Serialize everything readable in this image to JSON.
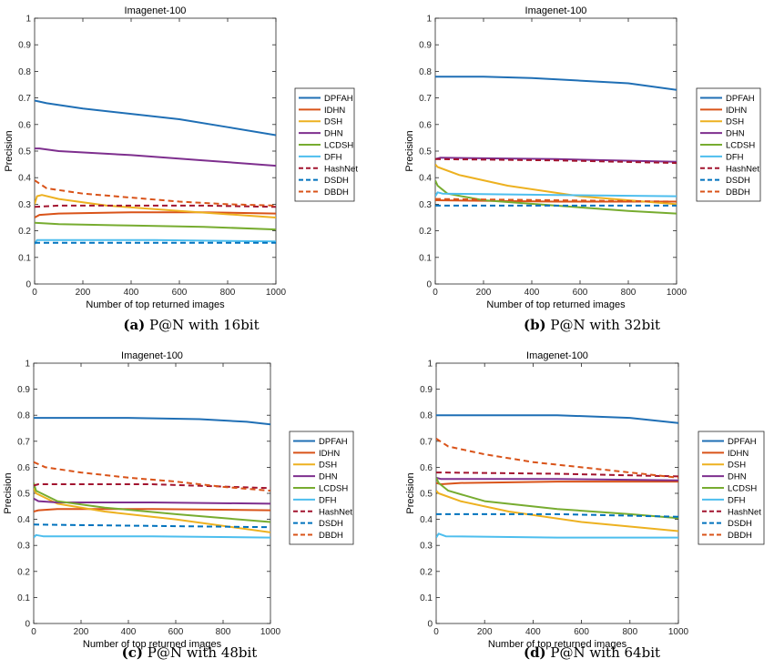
{
  "series_styles": [
    {
      "name": "DPFAH",
      "color": "#1f6fb5",
      "dash": "solid"
    },
    {
      "name": "IDHN",
      "color": "#d95319",
      "dash": "solid"
    },
    {
      "name": "DSH",
      "color": "#edb120",
      "dash": "solid"
    },
    {
      "name": "DHN",
      "color": "#7e2f8e",
      "dash": "solid"
    },
    {
      "name": "LCDSH",
      "color": "#77ac30",
      "dash": "solid"
    },
    {
      "name": "DFH",
      "color": "#4dbeee",
      "dash": "solid"
    },
    {
      "name": "HashNet",
      "color": "#a2142f",
      "dash": "dashed"
    },
    {
      "name": "DSDH",
      "color": "#0072bd",
      "dash": "dashed"
    },
    {
      "name": "DBDH",
      "color": "#d95319",
      "dash": "dashed"
    }
  ],
  "chart_data": [
    {
      "type": "line",
      "title": "Imagenet-100",
      "xlabel": "Number of top returned images",
      "ylabel": "Precision",
      "caption_label": "(a)",
      "caption_text": " P@N with 16bit",
      "xlim": [
        0,
        1000
      ],
      "ylim": [
        0,
        1
      ],
      "xticks": [
        0,
        200,
        400,
        600,
        800,
        1000
      ],
      "yticks": [
        0,
        0.1,
        0.2,
        0.3,
        0.4,
        0.5,
        0.6,
        0.7,
        0.8,
        0.9,
        1
      ],
      "grid": false,
      "legend_position": "outside-right",
      "series": [
        {
          "name": "DPFAH",
          "x": [
            0,
            50,
            200,
            400,
            600,
            800,
            1000
          ],
          "y": [
            0.69,
            0.68,
            0.66,
            0.64,
            0.62,
            0.59,
            0.56
          ]
        },
        {
          "name": "IDHN",
          "x": [
            0,
            20,
            100,
            400,
            700,
            1000
          ],
          "y": [
            0.25,
            0.26,
            0.265,
            0.27,
            0.27,
            0.265
          ]
        },
        {
          "name": "DSH",
          "x": [
            0,
            10,
            30,
            100,
            300,
            600,
            1000
          ],
          "y": [
            0.3,
            0.33,
            0.335,
            0.32,
            0.295,
            0.275,
            0.25
          ]
        },
        {
          "name": "DHN",
          "x": [
            0,
            20,
            100,
            400,
            700,
            1000
          ],
          "y": [
            0.51,
            0.51,
            0.5,
            0.485,
            0.465,
            0.445
          ]
        },
        {
          "name": "LCDSH",
          "x": [
            0,
            100,
            400,
            700,
            1000
          ],
          "y": [
            0.23,
            0.225,
            0.22,
            0.215,
            0.205
          ]
        },
        {
          "name": "DFH",
          "x": [
            0,
            10,
            500,
            1000
          ],
          "y": [
            0.15,
            0.165,
            0.165,
            0.16
          ]
        },
        {
          "name": "HashNet",
          "x": [
            0,
            100,
            400,
            700,
            1000
          ],
          "y": [
            0.29,
            0.295,
            0.295,
            0.295,
            0.29
          ]
        },
        {
          "name": "DSDH",
          "x": [
            0,
            500,
            1000
          ],
          "y": [
            0.155,
            0.155,
            0.155
          ]
        },
        {
          "name": "DBDH",
          "x": [
            0,
            50,
            200,
            400,
            600,
            800,
            1000
          ],
          "y": [
            0.39,
            0.36,
            0.34,
            0.325,
            0.31,
            0.3,
            0.295
          ]
        }
      ]
    },
    {
      "type": "line",
      "title": "Imagenet-100",
      "xlabel": "Number of top returned images",
      "ylabel": "Precision",
      "caption_label": "(b)",
      "caption_text": " P@N with 32bit",
      "xlim": [
        0,
        1000
      ],
      "ylim": [
        0,
        1
      ],
      "xticks": [
        0,
        200,
        400,
        600,
        800,
        1000
      ],
      "yticks": [
        0,
        0.1,
        0.2,
        0.3,
        0.4,
        0.5,
        0.6,
        0.7,
        0.8,
        0.9,
        1
      ],
      "grid": false,
      "legend_position": "outside-right",
      "series": [
        {
          "name": "DPFAH",
          "x": [
            0,
            200,
            400,
            600,
            800,
            1000
          ],
          "y": [
            0.78,
            0.78,
            0.775,
            0.765,
            0.755,
            0.73
          ]
        },
        {
          "name": "IDHN",
          "x": [
            0,
            500,
            1000
          ],
          "y": [
            0.315,
            0.31,
            0.31
          ]
        },
        {
          "name": "DSH",
          "x": [
            0,
            10,
            100,
            300,
            600,
            1000
          ],
          "y": [
            0.45,
            0.44,
            0.41,
            0.37,
            0.33,
            0.3
          ]
        },
        {
          "name": "DHN",
          "x": [
            0,
            20,
            500,
            1000
          ],
          "y": [
            0.47,
            0.475,
            0.47,
            0.46
          ]
        },
        {
          "name": "LCDSH",
          "x": [
            0,
            10,
            50,
            200,
            500,
            800,
            1000
          ],
          "y": [
            0.39,
            0.37,
            0.34,
            0.315,
            0.295,
            0.275,
            0.265
          ]
        },
        {
          "name": "DFH",
          "x": [
            0,
            10,
            30,
            500,
            1000
          ],
          "y": [
            0.33,
            0.345,
            0.34,
            0.335,
            0.33
          ]
        },
        {
          "name": "HashNet",
          "x": [
            0,
            500,
            1000
          ],
          "y": [
            0.47,
            0.465,
            0.455
          ]
        },
        {
          "name": "DSDH",
          "x": [
            0,
            500,
            1000
          ],
          "y": [
            0.295,
            0.295,
            0.295
          ]
        },
        {
          "name": "DBDH",
          "x": [
            0,
            500,
            1000
          ],
          "y": [
            0.32,
            0.315,
            0.31
          ]
        }
      ]
    },
    {
      "type": "line",
      "title": "Imagenet-100",
      "xlabel": "Number of top returned images",
      "ylabel": "Precision",
      "caption_label": "(c)",
      "caption_text": " P@N with 48bit",
      "xlim": [
        0,
        1000
      ],
      "ylim": [
        0,
        1
      ],
      "xticks": [
        0,
        200,
        400,
        600,
        800,
        1000
      ],
      "yticks": [
        0,
        0.1,
        0.2,
        0.3,
        0.4,
        0.5,
        0.6,
        0.7,
        0.8,
        0.9,
        1
      ],
      "grid": false,
      "legend_position": "outside-right",
      "series": [
        {
          "name": "DPFAH",
          "x": [
            0,
            100,
            400,
            700,
            900,
            1000
          ],
          "y": [
            0.79,
            0.79,
            0.79,
            0.785,
            0.775,
            0.765
          ]
        },
        {
          "name": "IDHN",
          "x": [
            0,
            20,
            100,
            500,
            1000
          ],
          "y": [
            0.43,
            0.435,
            0.44,
            0.44,
            0.435
          ]
        },
        {
          "name": "DSH",
          "x": [
            0,
            10,
            100,
            300,
            600,
            1000
          ],
          "y": [
            0.52,
            0.5,
            0.46,
            0.43,
            0.4,
            0.35
          ]
        },
        {
          "name": "DHN",
          "x": [
            0,
            20,
            100,
            500,
            1000
          ],
          "y": [
            0.48,
            0.47,
            0.465,
            0.465,
            0.46
          ]
        },
        {
          "name": "LCDSH",
          "x": [
            0,
            10,
            100,
            300,
            600,
            1000
          ],
          "y": [
            0.54,
            0.51,
            0.47,
            0.445,
            0.42,
            0.39
          ]
        },
        {
          "name": "DFH",
          "x": [
            0,
            10,
            40,
            500,
            1000
          ],
          "y": [
            0.33,
            0.34,
            0.335,
            0.335,
            0.33
          ]
        },
        {
          "name": "HashNet",
          "x": [
            0,
            20,
            500,
            1000
          ],
          "y": [
            0.53,
            0.535,
            0.535,
            0.52
          ]
        },
        {
          "name": "DSDH",
          "x": [
            0,
            500,
            1000
          ],
          "y": [
            0.38,
            0.375,
            0.37
          ]
        },
        {
          "name": "DBDH",
          "x": [
            0,
            50,
            200,
            400,
            600,
            800,
            1000
          ],
          "y": [
            0.62,
            0.6,
            0.58,
            0.56,
            0.545,
            0.525,
            0.51
          ]
        }
      ]
    },
    {
      "type": "line",
      "title": "Imagenet-100",
      "xlabel": "Number of top returned images",
      "ylabel": "Precision",
      "caption_label": "(d)",
      "caption_text": " P@N with 64bit",
      "xlim": [
        0,
        1000
      ],
      "ylim": [
        0,
        1
      ],
      "xticks": [
        0,
        200,
        400,
        600,
        800,
        1000
      ],
      "yticks": [
        0,
        0.1,
        0.2,
        0.3,
        0.4,
        0.5,
        0.6,
        0.7,
        0.8,
        0.9,
        1
      ],
      "grid": false,
      "legend_position": "outside-right",
      "series": [
        {
          "name": "DPFAH",
          "x": [
            0,
            200,
            500,
            800,
            1000
          ],
          "y": [
            0.8,
            0.8,
            0.8,
            0.79,
            0.77
          ]
        },
        {
          "name": "IDHN",
          "x": [
            0,
            20,
            100,
            500,
            1000
          ],
          "y": [
            0.54,
            0.535,
            0.54,
            0.545,
            0.545
          ]
        },
        {
          "name": "DSH",
          "x": [
            0,
            10,
            100,
            300,
            600,
            1000
          ],
          "y": [
            0.51,
            0.5,
            0.47,
            0.43,
            0.39,
            0.355
          ]
        },
        {
          "name": "DHN",
          "x": [
            0,
            20,
            500,
            1000
          ],
          "y": [
            0.56,
            0.555,
            0.555,
            0.55
          ]
        },
        {
          "name": "LCDSH",
          "x": [
            0,
            10,
            50,
            200,
            500,
            800,
            1000
          ],
          "y": [
            0.56,
            0.54,
            0.51,
            0.47,
            0.44,
            0.42,
            0.405
          ]
        },
        {
          "name": "DFH",
          "x": [
            0,
            10,
            40,
            500,
            1000
          ],
          "y": [
            0.33,
            0.345,
            0.335,
            0.33,
            0.33
          ]
        },
        {
          "name": "HashNet",
          "x": [
            0,
            20,
            500,
            1000
          ],
          "y": [
            0.58,
            0.58,
            0.575,
            0.565
          ]
        },
        {
          "name": "DSDH",
          "x": [
            0,
            500,
            1000
          ],
          "y": [
            0.42,
            0.42,
            0.41
          ]
        },
        {
          "name": "DBDH",
          "x": [
            0,
            50,
            200,
            400,
            600,
            800,
            1000
          ],
          "y": [
            0.71,
            0.68,
            0.65,
            0.62,
            0.6,
            0.58,
            0.56
          ]
        }
      ]
    }
  ]
}
